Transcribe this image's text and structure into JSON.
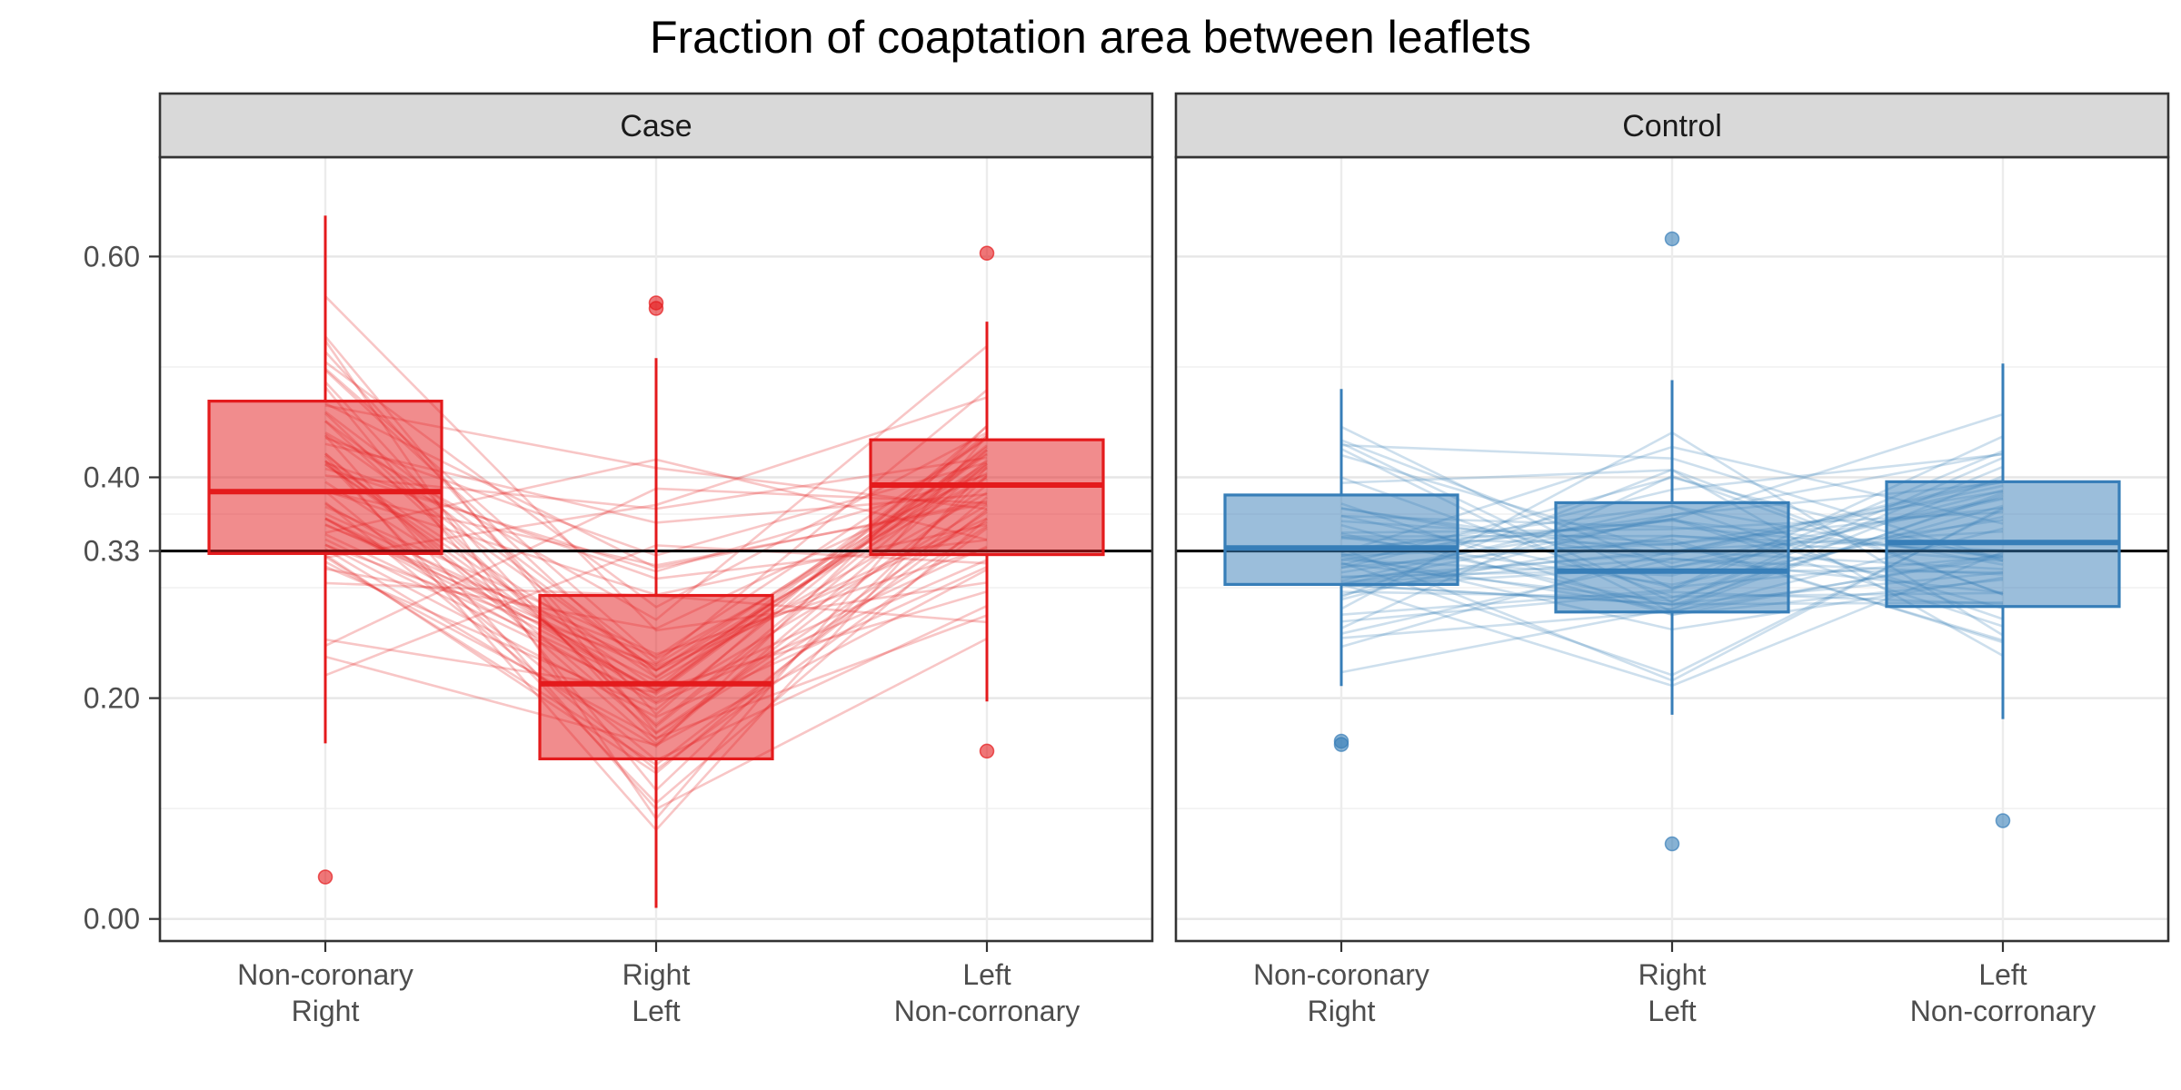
{
  "chart_data": {
    "type": "boxplot",
    "title": "Fraction of coaptation area between leaflets",
    "xlabel": "",
    "ylabel": "",
    "ylim": [
      -0.02,
      0.69
    ],
    "yticks": [
      {
        "value": 0.0,
        "label": "0.00"
      },
      {
        "value": 0.2,
        "label": "0.20"
      },
      {
        "value": 0.3333,
        "label": "0.33"
      },
      {
        "value": 0.4,
        "label": "0.40"
      },
      {
        "value": 0.6,
        "label": "0.60"
      }
    ],
    "reference_line": 0.3333,
    "grid": true,
    "categories": [
      {
        "line1": "Non-coronary",
        "line2": "Right"
      },
      {
        "line1": "Right",
        "line2": "Left"
      },
      {
        "line1": "Left",
        "line2": "Non-corronary"
      }
    ],
    "panels": [
      {
        "name": "Case",
        "color": "#E41A1C",
        "boxes": [
          {
            "whisker_low": 0.159,
            "q1": 0.331,
            "median": 0.387,
            "q3": 0.469,
            "whisker_high": 0.637,
            "outliers": [
              0.038
            ]
          },
          {
            "whisker_low": 0.01,
            "q1": 0.145,
            "median": 0.213,
            "q3": 0.293,
            "whisker_high": 0.508,
            "outliers": [
              0.558,
              0.553
            ]
          },
          {
            "whisker_low": 0.197,
            "q1": 0.33,
            "median": 0.393,
            "q3": 0.434,
            "whisker_high": 0.541,
            "outliers": [
              0.603,
              0.152
            ]
          }
        ]
      },
      {
        "name": "Control",
        "color": "#377EB8",
        "boxes": [
          {
            "whisker_low": 0.211,
            "q1": 0.303,
            "median": 0.336,
            "q3": 0.384,
            "whisker_high": 0.48,
            "outliers": [
              0.161,
              0.158
            ]
          },
          {
            "whisker_low": 0.185,
            "q1": 0.278,
            "median": 0.315,
            "q3": 0.377,
            "whisker_high": 0.488,
            "outliers": [
              0.616,
              0.068
            ]
          },
          {
            "whisker_low": 0.181,
            "q1": 0.283,
            "median": 0.341,
            "q3": 0.396,
            "whisker_high": 0.503,
            "outliers": [
              0.089
            ]
          }
        ]
      }
    ]
  }
}
